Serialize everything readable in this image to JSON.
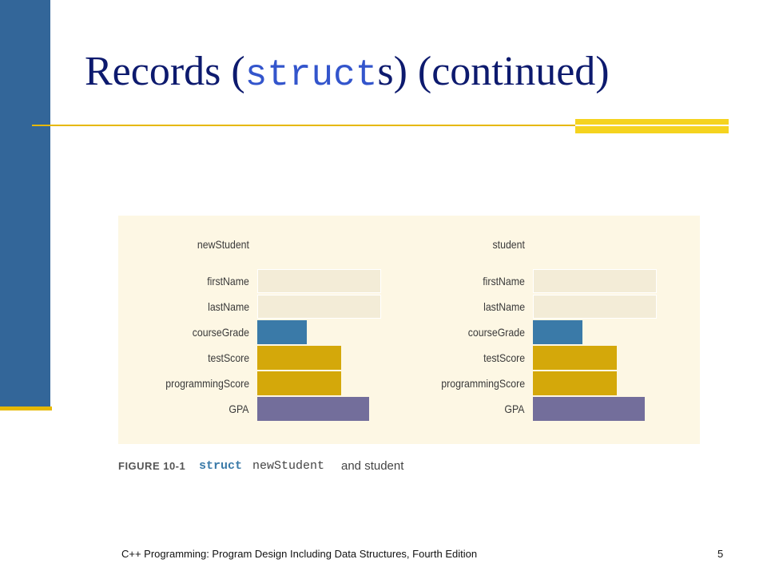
{
  "slide": {
    "title_prefix": "Records (",
    "title_code": "struct",
    "title_suffix": "s) (continued)",
    "footer": "C++ Programming: Program Design Including Data Structures, Fourth Edition",
    "page_number": "5"
  },
  "figure": {
    "structs": [
      {
        "name": "newStudent",
        "fields": [
          {
            "label": "firstName",
            "color": "#f3ecd7",
            "relative_width": 5
          },
          {
            "label": "lastName",
            "color": "#f3ecd7",
            "relative_width": 5
          },
          {
            "label": "courseGrade",
            "color": "#3a7aa8",
            "relative_width": 2
          },
          {
            "label": "testScore",
            "color": "#d4a80a",
            "relative_width": 3.4
          },
          {
            "label": "programmingScore",
            "color": "#d4a80a",
            "relative_width": 3.4
          },
          {
            "label": "GPA",
            "color": "#736e9b",
            "relative_width": 4.5
          }
        ]
      },
      {
        "name": "student",
        "fields": [
          {
            "label": "firstName",
            "color": "#f3ecd7",
            "relative_width": 5
          },
          {
            "label": "lastName",
            "color": "#f3ecd7",
            "relative_width": 5
          },
          {
            "label": "courseGrade",
            "color": "#3a7aa8",
            "relative_width": 2
          },
          {
            "label": "testScore",
            "color": "#d4a80a",
            "relative_width": 3.4
          },
          {
            "label": "programmingScore",
            "color": "#d4a80a",
            "relative_width": 3.4
          },
          {
            "label": "GPA",
            "color": "#736e9b",
            "relative_width": 4.5
          }
        ]
      }
    ],
    "caption": {
      "number": "FIGURE 10-1",
      "keyword": "struct",
      "identifier": "newStudent",
      "text": "and student"
    }
  },
  "colors": {
    "sidebar": "#336699",
    "accent": "#e6b800",
    "title": "#0d1a6e",
    "panel": "#fdf7e4"
  }
}
